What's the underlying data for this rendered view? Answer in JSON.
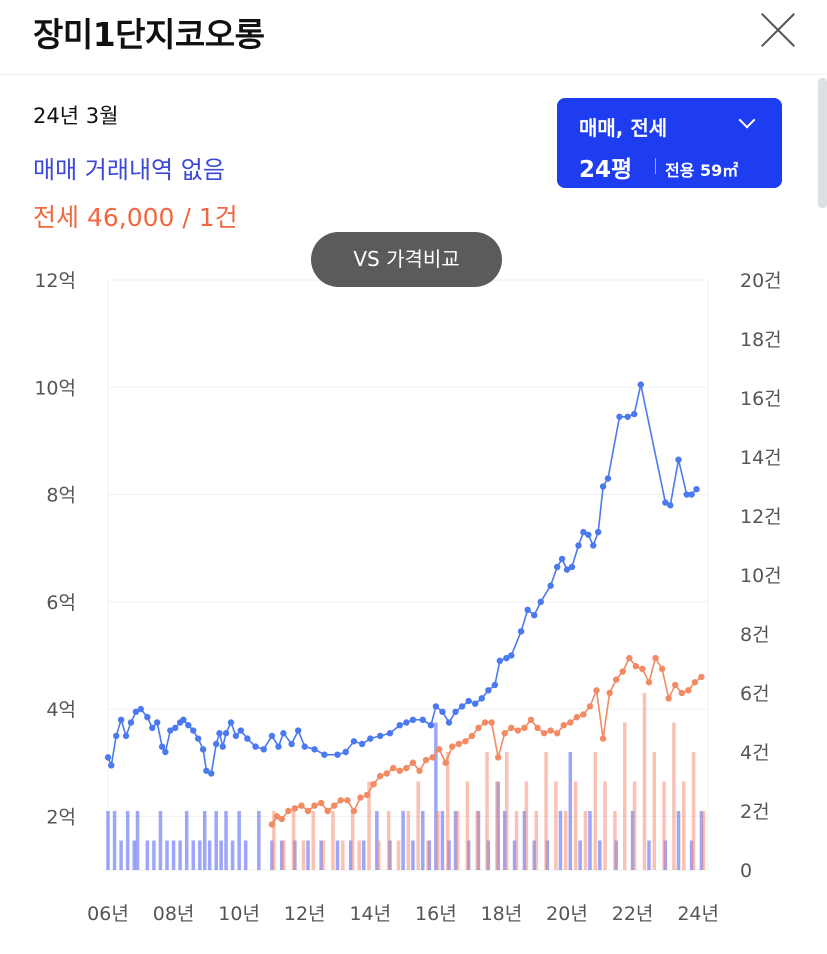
{
  "header": {
    "title": "장미1단지코오롱"
  },
  "summary": {
    "date": "24년 3월",
    "sale_text": "매매 거래내역 없음",
    "rent_text": "전세 46,000 / 1건"
  },
  "filter": {
    "type": "매매, 전세",
    "size": "24평",
    "area": "전용 59㎡"
  },
  "compare_button": "VS 가격비교",
  "colors": {
    "sale": "#4b79f0",
    "rent": "#f28a63",
    "sale_bar": "#4c5cf5",
    "rent_bar": "#f3856b",
    "accent": "#1e3df0"
  },
  "chart_data": {
    "type": "line",
    "x_range": [
      2006.0,
      2024.3
    ],
    "x_ticks": [
      {
        "value": 2006,
        "label": "06년"
      },
      {
        "value": 2008,
        "label": "08년"
      },
      {
        "value": 2010,
        "label": "10년"
      },
      {
        "value": 2012,
        "label": "12년"
      },
      {
        "value": 2014,
        "label": "14년"
      },
      {
        "value": 2016,
        "label": "16년"
      },
      {
        "value": 2018,
        "label": "18년"
      },
      {
        "value": 2020,
        "label": "20년"
      },
      {
        "value": 2022,
        "label": "22년"
      },
      {
        "value": 2024,
        "label": "24년"
      }
    ],
    "y_left": {
      "range": [
        1,
        12
      ],
      "ticks": [
        {
          "value": 2,
          "label": "2억"
        },
        {
          "value": 4,
          "label": "4억"
        },
        {
          "value": 6,
          "label": "6억"
        },
        {
          "value": 8,
          "label": "8억"
        },
        {
          "value": 10,
          "label": "10억"
        },
        {
          "value": 12,
          "label": "12억"
        }
      ]
    },
    "y_right": {
      "range": [
        0,
        20
      ],
      "ticks": [
        {
          "value": 0,
          "label": "0"
        },
        {
          "value": 2,
          "label": "2건"
        },
        {
          "value": 4,
          "label": "4건"
        },
        {
          "value": 6,
          "label": "6건"
        },
        {
          "value": 8,
          "label": "8건"
        },
        {
          "value": 10,
          "label": "10건"
        },
        {
          "value": 12,
          "label": "12건"
        },
        {
          "value": 14,
          "label": "14건"
        },
        {
          "value": 16,
          "label": "16건"
        },
        {
          "value": 18,
          "label": "18건"
        },
        {
          "value": 20,
          "label": "20건"
        }
      ]
    },
    "grid": true,
    "series": [
      {
        "kind": "price",
        "color": "#4b79f0",
        "points": [
          [
            2006.0,
            3.1
          ],
          [
            2006.1,
            2.95
          ],
          [
            2006.25,
            3.5
          ],
          [
            2006.4,
            3.8
          ],
          [
            2006.55,
            3.5
          ],
          [
            2006.7,
            3.75
          ],
          [
            2006.85,
            3.95
          ],
          [
            2007.0,
            4.0
          ],
          [
            2007.2,
            3.85
          ],
          [
            2007.35,
            3.65
          ],
          [
            2007.5,
            3.75
          ],
          [
            2007.65,
            3.3
          ],
          [
            2007.75,
            3.2
          ],
          [
            2007.9,
            3.6
          ],
          [
            2008.05,
            3.65
          ],
          [
            2008.2,
            3.75
          ],
          [
            2008.3,
            3.8
          ],
          [
            2008.45,
            3.7
          ],
          [
            2008.6,
            3.6
          ],
          [
            2008.75,
            3.45
          ],
          [
            2008.9,
            3.25
          ],
          [
            2009.0,
            2.85
          ],
          [
            2009.15,
            2.8
          ],
          [
            2009.3,
            3.35
          ],
          [
            2009.4,
            3.55
          ],
          [
            2009.5,
            3.3
          ],
          [
            2009.6,
            3.55
          ],
          [
            2009.75,
            3.75
          ],
          [
            2009.9,
            3.5
          ],
          [
            2010.05,
            3.6
          ],
          [
            2010.25,
            3.45
          ],
          [
            2010.5,
            3.3
          ],
          [
            2010.75,
            3.25
          ],
          [
            2011.0,
            3.5
          ],
          [
            2011.2,
            3.3
          ],
          [
            2011.35,
            3.55
          ],
          [
            2011.6,
            3.35
          ],
          [
            2011.8,
            3.6
          ],
          [
            2012.0,
            3.3
          ],
          [
            2012.3,
            3.25
          ],
          [
            2012.6,
            3.15
          ],
          [
            2013.0,
            3.15
          ],
          [
            2013.25,
            3.2
          ],
          [
            2013.5,
            3.4
          ],
          [
            2013.75,
            3.35
          ],
          [
            2014.0,
            3.45
          ],
          [
            2014.3,
            3.5
          ],
          [
            2014.6,
            3.55
          ],
          [
            2014.9,
            3.7
          ],
          [
            2015.1,
            3.75
          ],
          [
            2015.3,
            3.8
          ],
          [
            2015.6,
            3.8
          ],
          [
            2015.85,
            3.7
          ],
          [
            2016.0,
            4.05
          ],
          [
            2016.2,
            3.95
          ],
          [
            2016.4,
            3.75
          ],
          [
            2016.6,
            3.95
          ],
          [
            2016.8,
            4.05
          ],
          [
            2017.0,
            4.15
          ],
          [
            2017.2,
            4.1
          ],
          [
            2017.4,
            4.2
          ],
          [
            2017.6,
            4.35
          ],
          [
            2017.8,
            4.45
          ],
          [
            2017.95,
            4.9
          ],
          [
            2018.15,
            4.95
          ],
          [
            2018.3,
            5.0
          ],
          [
            2018.6,
            5.45
          ],
          [
            2018.8,
            5.85
          ],
          [
            2019.0,
            5.75
          ],
          [
            2019.2,
            6.0
          ],
          [
            2019.5,
            6.3
          ],
          [
            2019.7,
            6.65
          ],
          [
            2019.85,
            6.8
          ],
          [
            2020.0,
            6.6
          ],
          [
            2020.15,
            6.65
          ],
          [
            2020.35,
            7.05
          ],
          [
            2020.5,
            7.3
          ],
          [
            2020.65,
            7.25
          ],
          [
            2020.8,
            7.05
          ],
          [
            2020.95,
            7.3
          ],
          [
            2021.1,
            8.15
          ],
          [
            2021.25,
            8.3
          ],
          [
            2021.6,
            9.45
          ],
          [
            2021.85,
            9.45
          ],
          [
            2022.05,
            9.5
          ],
          [
            2022.25,
            10.05
          ],
          [
            2023.0,
            7.85
          ],
          [
            2023.15,
            7.8
          ],
          [
            2023.4,
            8.65
          ],
          [
            2023.65,
            8.0
          ],
          [
            2023.8,
            8.0
          ],
          [
            2023.95,
            8.1
          ]
        ]
      },
      {
        "kind": "price",
        "color": "#f28a63",
        "points": [
          [
            2011.0,
            1.85
          ],
          [
            2011.15,
            2.0
          ],
          [
            2011.3,
            1.95
          ],
          [
            2011.5,
            2.1
          ],
          [
            2011.7,
            2.15
          ],
          [
            2011.9,
            2.2
          ],
          [
            2012.1,
            2.1
          ],
          [
            2012.3,
            2.2
          ],
          [
            2012.5,
            2.25
          ],
          [
            2012.7,
            2.1
          ],
          [
            2012.9,
            2.2
          ],
          [
            2013.1,
            2.3
          ],
          [
            2013.3,
            2.3
          ],
          [
            2013.5,
            2.1
          ],
          [
            2013.7,
            2.35
          ],
          [
            2013.9,
            2.4
          ],
          [
            2014.1,
            2.6
          ],
          [
            2014.3,
            2.75
          ],
          [
            2014.5,
            2.8
          ],
          [
            2014.7,
            2.9
          ],
          [
            2014.9,
            2.85
          ],
          [
            2015.1,
            2.9
          ],
          [
            2015.3,
            3.0
          ],
          [
            2015.5,
            2.85
          ],
          [
            2015.7,
            3.05
          ],
          [
            2015.9,
            3.1
          ],
          [
            2016.1,
            3.25
          ],
          [
            2016.3,
            3.0
          ],
          [
            2016.5,
            3.3
          ],
          [
            2016.7,
            3.35
          ],
          [
            2016.9,
            3.4
          ],
          [
            2017.1,
            3.5
          ],
          [
            2017.3,
            3.65
          ],
          [
            2017.5,
            3.75
          ],
          [
            2017.7,
            3.75
          ],
          [
            2017.9,
            3.1
          ],
          [
            2018.1,
            3.55
          ],
          [
            2018.3,
            3.65
          ],
          [
            2018.5,
            3.6
          ],
          [
            2018.7,
            3.65
          ],
          [
            2018.9,
            3.8
          ],
          [
            2019.1,
            3.65
          ],
          [
            2019.3,
            3.55
          ],
          [
            2019.5,
            3.6
          ],
          [
            2019.7,
            3.55
          ],
          [
            2019.9,
            3.7
          ],
          [
            2020.1,
            3.75
          ],
          [
            2020.3,
            3.85
          ],
          [
            2020.5,
            3.9
          ],
          [
            2020.7,
            4.05
          ],
          [
            2020.9,
            4.35
          ],
          [
            2021.1,
            3.45
          ],
          [
            2021.3,
            4.3
          ],
          [
            2021.5,
            4.55
          ],
          [
            2021.7,
            4.7
          ],
          [
            2021.9,
            4.95
          ],
          [
            2022.1,
            4.8
          ],
          [
            2022.3,
            4.75
          ],
          [
            2022.5,
            4.5
          ],
          [
            2022.7,
            4.95
          ],
          [
            2022.9,
            4.75
          ],
          [
            2023.1,
            4.2
          ],
          [
            2023.3,
            4.45
          ],
          [
            2023.5,
            4.3
          ],
          [
            2023.7,
            4.35
          ],
          [
            2023.9,
            4.5
          ],
          [
            2024.1,
            4.6
          ]
        ]
      }
    ],
    "bars_approx": {
      "sale_bar_counts": [
        [
          2006.0,
          2
        ],
        [
          2006.2,
          2
        ],
        [
          2006.4,
          1
        ],
        [
          2006.6,
          2
        ],
        [
          2006.8,
          1
        ],
        [
          2006.9,
          2
        ],
        [
          2007.2,
          1
        ],
        [
          2007.4,
          1
        ],
        [
          2007.6,
          2
        ],
        [
          2007.8,
          1
        ],
        [
          2008.0,
          1
        ],
        [
          2008.2,
          1
        ],
        [
          2008.4,
          2
        ],
        [
          2008.6,
          1
        ],
        [
          2008.8,
          1
        ],
        [
          2008.95,
          2
        ],
        [
          2009.1,
          1
        ],
        [
          2009.3,
          2
        ],
        [
          2009.45,
          1
        ],
        [
          2009.6,
          2
        ],
        [
          2009.8,
          1
        ],
        [
          2010.0,
          2
        ],
        [
          2010.2,
          1
        ],
        [
          2010.6,
          2
        ],
        [
          2011.0,
          1
        ],
        [
          2011.3,
          1
        ],
        [
          2011.7,
          1
        ],
        [
          2012.1,
          1
        ],
        [
          2012.5,
          1
        ],
        [
          2013.0,
          1
        ],
        [
          2013.4,
          1
        ],
        [
          2013.8,
          1
        ],
        [
          2014.2,
          2
        ],
        [
          2014.6,
          1
        ],
        [
          2015.0,
          2
        ],
        [
          2015.3,
          1
        ],
        [
          2015.6,
          2
        ],
        [
          2015.8,
          1
        ],
        [
          2016.0,
          5
        ],
        [
          2016.2,
          2
        ],
        [
          2016.4,
          1
        ],
        [
          2016.6,
          2
        ],
        [
          2017.0,
          1
        ],
        [
          2017.3,
          2
        ],
        [
          2017.6,
          1
        ],
        [
          2017.9,
          3
        ],
        [
          2018.1,
          2
        ],
        [
          2018.4,
          1
        ],
        [
          2018.7,
          2
        ],
        [
          2019.0,
          1
        ],
        [
          2019.4,
          1
        ],
        [
          2019.8,
          2
        ],
        [
          2020.1,
          4
        ],
        [
          2020.4,
          1
        ],
        [
          2020.7,
          2
        ],
        [
          2021.0,
          1
        ],
        [
          2021.5,
          1
        ],
        [
          2022.0,
          2
        ],
        [
          2022.5,
          1
        ],
        [
          2023.0,
          1
        ],
        [
          2023.4,
          2
        ],
        [
          2023.8,
          1
        ],
        [
          2024.1,
          2
        ]
      ],
      "rent_bar_counts": [
        [
          2011.0,
          2
        ],
        [
          2011.3,
          1
        ],
        [
          2011.6,
          2
        ],
        [
          2011.9,
          1
        ],
        [
          2012.2,
          2
        ],
        [
          2012.5,
          1
        ],
        [
          2012.8,
          2
        ],
        [
          2013.1,
          1
        ],
        [
          2013.4,
          2
        ],
        [
          2013.6,
          1
        ],
        [
          2013.9,
          3
        ],
        [
          2014.2,
          1
        ],
        [
          2014.5,
          2
        ],
        [
          2014.8,
          1
        ],
        [
          2015.1,
          2
        ],
        [
          2015.4,
          3
        ],
        [
          2015.7,
          1
        ],
        [
          2016.0,
          2
        ],
        [
          2016.3,
          4
        ],
        [
          2016.6,
          2
        ],
        [
          2016.9,
          3
        ],
        [
          2017.2,
          2
        ],
        [
          2017.5,
          4
        ],
        [
          2017.8,
          3
        ],
        [
          2018.1,
          4
        ],
        [
          2018.4,
          2
        ],
        [
          2018.7,
          3
        ],
        [
          2019.0,
          2
        ],
        [
          2019.3,
          4
        ],
        [
          2019.6,
          3
        ],
        [
          2019.9,
          2
        ],
        [
          2020.2,
          3
        ],
        [
          2020.5,
          2
        ],
        [
          2020.8,
          4
        ],
        [
          2021.1,
          3
        ],
        [
          2021.4,
          2
        ],
        [
          2021.7,
          5
        ],
        [
          2022.0,
          3
        ],
        [
          2022.3,
          6
        ],
        [
          2022.6,
          4
        ],
        [
          2022.9,
          3
        ],
        [
          2023.2,
          5
        ],
        [
          2023.5,
          3
        ],
        [
          2023.8,
          4
        ],
        [
          2024.1,
          2
        ]
      ]
    }
  }
}
